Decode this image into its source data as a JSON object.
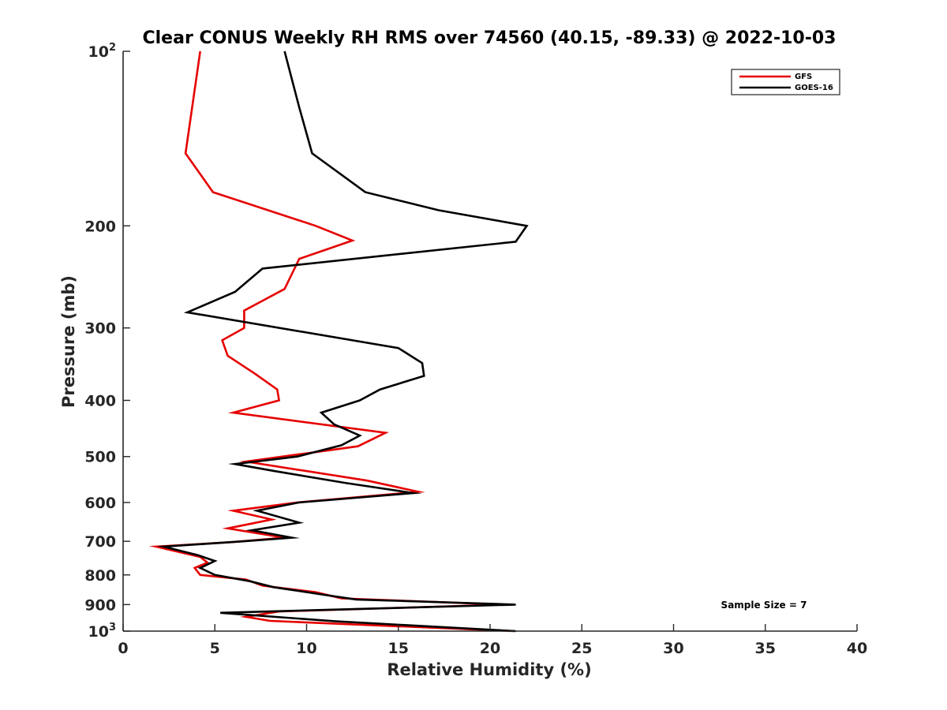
{
  "chart_data": {
    "type": "line",
    "title": "Clear CONUS Weekly RH RMS over 74560 (40.15, -89.33) @ 2022-10-03",
    "xlabel": "Relative Humidity (%)",
    "ylabel": "Pressure (mb)",
    "xlim": [
      0,
      40
    ],
    "ylim": [
      100,
      1000
    ],
    "yscale": "log",
    "y_reversed": true,
    "grid": false,
    "legend_placement": "top-right",
    "x_ticks": [
      0,
      5,
      10,
      15,
      20,
      25,
      30,
      35,
      40
    ],
    "y_ticks": [
      {
        "value": 100,
        "base": "10",
        "exp": "2"
      },
      {
        "value": 200,
        "label": "200"
      },
      {
        "value": 300,
        "label": "300"
      },
      {
        "value": 400,
        "label": "400"
      },
      {
        "value": 500,
        "label": "500"
      },
      {
        "value": 600,
        "label": "600"
      },
      {
        "value": 700,
        "label": "700"
      },
      {
        "value": 800,
        "label": "800"
      },
      {
        "value": 900,
        "label": "900"
      },
      {
        "value": 1000,
        "base": "10",
        "exp": "3"
      }
    ],
    "series": [
      {
        "name": "GFS",
        "color": "#e60000",
        "points": [
          {
            "x": 4.2,
            "y": 100
          },
          {
            "x": 3.4,
            "y": 150
          },
          {
            "x": 4.9,
            "y": 175
          },
          {
            "x": 10.5,
            "y": 200
          },
          {
            "x": 12.5,
            "y": 212
          },
          {
            "x": 9.6,
            "y": 228
          },
          {
            "x": 8.8,
            "y": 257
          },
          {
            "x": 6.6,
            "y": 280
          },
          {
            "x": 6.6,
            "y": 300
          },
          {
            "x": 5.4,
            "y": 315
          },
          {
            "x": 5.7,
            "y": 335
          },
          {
            "x": 7.2,
            "y": 360
          },
          {
            "x": 8.4,
            "y": 383
          },
          {
            "x": 8.5,
            "y": 400
          },
          {
            "x": 6.0,
            "y": 420
          },
          {
            "x": 14.3,
            "y": 455
          },
          {
            "x": 12.8,
            "y": 480
          },
          {
            "x": 6.7,
            "y": 510
          },
          {
            "x": 13.3,
            "y": 550
          },
          {
            "x": 16.1,
            "y": 575
          },
          {
            "x": 9.5,
            "y": 600
          },
          {
            "x": 6.0,
            "y": 620
          },
          {
            "x": 8.1,
            "y": 642
          },
          {
            "x": 5.7,
            "y": 665
          },
          {
            "x": 8.8,
            "y": 690
          },
          {
            "x": 6.0,
            "y": 702
          },
          {
            "x": 1.8,
            "y": 715
          },
          {
            "x": 4.2,
            "y": 745
          },
          {
            "x": 4.6,
            "y": 762
          },
          {
            "x": 3.9,
            "y": 778
          },
          {
            "x": 4.2,
            "y": 800
          },
          {
            "x": 6.7,
            "y": 815
          },
          {
            "x": 7.6,
            "y": 835
          },
          {
            "x": 10.5,
            "y": 857
          },
          {
            "x": 11.9,
            "y": 878
          },
          {
            "x": 20.8,
            "y": 900
          },
          {
            "x": 8.5,
            "y": 925
          },
          {
            "x": 6.7,
            "y": 945
          },
          {
            "x": 8.0,
            "y": 960
          },
          {
            "x": 21.3,
            "y": 1000
          }
        ]
      },
      {
        "name": "GOES-16",
        "color": "#000000",
        "points": [
          {
            "x": 8.8,
            "y": 100
          },
          {
            "x": 9.6,
            "y": 125
          },
          {
            "x": 10.3,
            "y": 150
          },
          {
            "x": 13.2,
            "y": 175
          },
          {
            "x": 17.2,
            "y": 188
          },
          {
            "x": 22.0,
            "y": 200
          },
          {
            "x": 21.4,
            "y": 213
          },
          {
            "x": 7.6,
            "y": 237
          },
          {
            "x": 6.1,
            "y": 260
          },
          {
            "x": 3.5,
            "y": 282
          },
          {
            "x": 15.0,
            "y": 325
          },
          {
            "x": 16.3,
            "y": 345
          },
          {
            "x": 16.4,
            "y": 363
          },
          {
            "x": 14.0,
            "y": 383
          },
          {
            "x": 12.9,
            "y": 400
          },
          {
            "x": 10.8,
            "y": 420
          },
          {
            "x": 11.5,
            "y": 440
          },
          {
            "x": 12.9,
            "y": 460
          },
          {
            "x": 11.9,
            "y": 478
          },
          {
            "x": 9.5,
            "y": 500
          },
          {
            "x": 6.1,
            "y": 515
          },
          {
            "x": 8.3,
            "y": 530
          },
          {
            "x": 12.1,
            "y": 555
          },
          {
            "x": 15.8,
            "y": 578
          },
          {
            "x": 9.6,
            "y": 600
          },
          {
            "x": 7.3,
            "y": 620
          },
          {
            "x": 9.6,
            "y": 650
          },
          {
            "x": 7.0,
            "y": 670
          },
          {
            "x": 9.2,
            "y": 690
          },
          {
            "x": 6.6,
            "y": 700
          },
          {
            "x": 2.2,
            "y": 715
          },
          {
            "x": 4.1,
            "y": 740
          },
          {
            "x": 5.0,
            "y": 757
          },
          {
            "x": 4.2,
            "y": 778
          },
          {
            "x": 5.0,
            "y": 800
          },
          {
            "x": 6.9,
            "y": 820
          },
          {
            "x": 8.2,
            "y": 840
          },
          {
            "x": 11.0,
            "y": 866
          },
          {
            "x": 12.7,
            "y": 882
          },
          {
            "x": 21.4,
            "y": 900
          },
          {
            "x": 5.3,
            "y": 930
          },
          {
            "x": 11.6,
            "y": 962
          },
          {
            "x": 21.4,
            "y": 1000
          }
        ]
      }
    ],
    "annotations": [
      {
        "text": "Sample Size = 7"
      }
    ]
  }
}
